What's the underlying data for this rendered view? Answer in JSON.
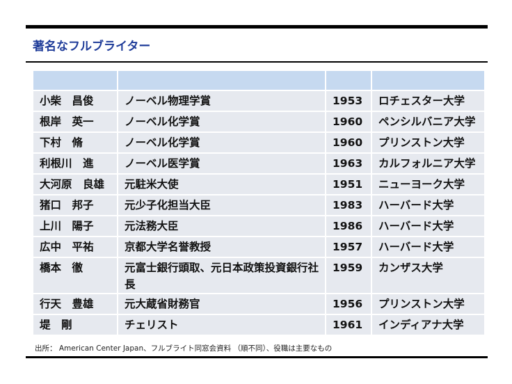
{
  "header": {
    "title": "著名なフルブライター"
  },
  "table": {
    "rows": [
      [
        "小柴　昌俊",
        "ノーベル物理学賞",
        1953,
        "ロチェスター大学"
      ],
      [
        "根岸　英一",
        "ノーベル化学賞",
        1960,
        "ペンシルバニア大学"
      ],
      [
        "下村　脩",
        "ノーベル化学賞",
        1960,
        "プリンストン大学"
      ],
      [
        "利根川　進",
        "ノーベル医学賞",
        1963,
        "カルフォルニア大学"
      ],
      [
        "大河原　良雄",
        "元駐米大使",
        1951,
        "ニューヨーク大学"
      ],
      [
        "猪口　邦子",
        "元少子化担当大臣",
        1983,
        "ハーバード大学"
      ],
      [
        "上川　陽子",
        "元法務大臣",
        1986,
        "ハーバード大学"
      ],
      [
        "広中　平祐",
        "京都大学名誉教授",
        1957,
        "ハーバード大学"
      ],
      [
        "橋本　徹",
        "元富士銀行頭取、元日本政策投資銀行社長",
        1959,
        "カンザス大学"
      ],
      [
        "行天　豊雄",
        "元大蔵省財務官",
        1956,
        "プリンストン大学"
      ],
      [
        "堤　剛",
        "チェリスト",
        1961,
        "インディアナ大学"
      ]
    ]
  },
  "footer": {
    "source": "出所：  American Center Japan、フルブライト同窓会資料 （順不同）、役職は主要なもの"
  }
}
